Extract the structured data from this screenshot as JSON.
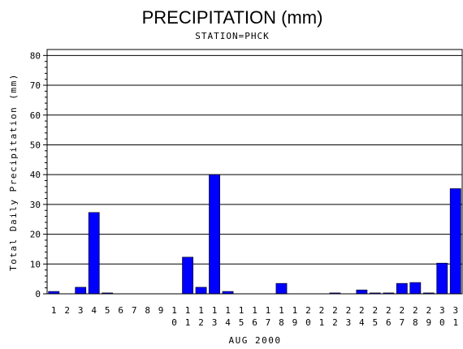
{
  "chart_data": {
    "type": "bar",
    "title": "PRECIPITATION (mm)",
    "subtitle": "STATION=PHCK",
    "xlabel": "AUG 2000",
    "ylabel": "Total Daily Precipitation (mm)",
    "ylim": [
      0,
      82
    ],
    "yticks": [
      0,
      10,
      20,
      30,
      40,
      50,
      60,
      70,
      80
    ],
    "ytick_labels": [
      "0",
      "10",
      "20",
      "30",
      "40",
      "50",
      "60",
      "70",
      "80"
    ],
    "grid": true,
    "categories": [
      "1",
      "2",
      "3",
      "4",
      "5",
      "6",
      "7",
      "8",
      "9",
      "10",
      "11",
      "12",
      "13",
      "14",
      "15",
      "16",
      "17",
      "18",
      "19",
      "20",
      "21",
      "22",
      "23",
      "24",
      "25",
      "26",
      "27",
      "28",
      "29",
      "30",
      "31"
    ],
    "values": [
      0.8,
      0,
      2.2,
      27.3,
      0.3,
      0,
      0,
      0,
      0,
      0,
      12.3,
      2.2,
      40.0,
      0.8,
      0,
      0,
      0,
      3.5,
      0,
      0,
      0,
      0.3,
      0,
      1.3,
      0.3,
      0.3,
      3.5,
      3.8,
      0.3,
      10.3,
      35.3
    ],
    "bar_color": "#0000ff"
  }
}
